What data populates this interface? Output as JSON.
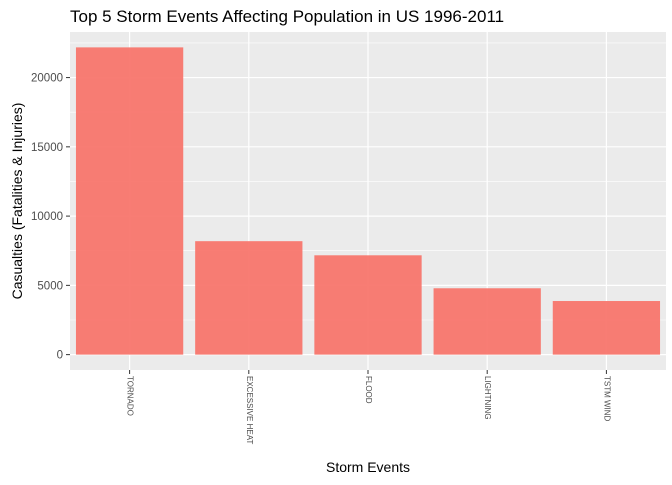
{
  "chart_data": {
    "type": "bar",
    "title": "Top 5 Storm Events Affecting Population in US 1996-2011",
    "xlabel": "Storm Events",
    "ylabel": "Casualties (Fatalities & Injuries)",
    "categories": [
      "TORNADO",
      "EXCESSIVE HEAT",
      "FLOOD",
      "LIGHTNING",
      "TSTM WIND"
    ],
    "values": [
      22180,
      8190,
      7170,
      4790,
      3870
    ],
    "ylim": [
      -1110,
      23290
    ],
    "yticks": [
      0,
      5000,
      10000,
      15000,
      20000
    ],
    "ytick_labels": [
      "0",
      "5000",
      "10000",
      "15000",
      "20000"
    ],
    "grid": true,
    "legend": "none",
    "colors": {
      "bar": "#F8766D",
      "panel_background": "#EBEBEB",
      "grid": "#FFFFFF",
      "text": "#000000",
      "tick_text": "#4D4D4D",
      "tick_mark": "#333333"
    }
  }
}
